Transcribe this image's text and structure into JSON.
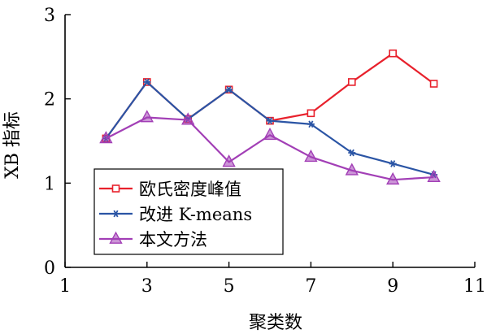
{
  "chart_data": {
    "type": "line",
    "title": "",
    "xlabel": "聚类数",
    "ylabel": "XB 指标",
    "xlim": [
      1,
      11
    ],
    "ylim": [
      0,
      3
    ],
    "x_ticks": [
      1,
      3,
      5,
      7,
      9,
      11
    ],
    "y_ticks": [
      0,
      1,
      2,
      3
    ],
    "grid": false,
    "legend_position": "bottom-left",
    "series": [
      {
        "name": "欧氏密度峰值",
        "color": "#e8212c",
        "marker": "square",
        "x": [
          2,
          3,
          4,
          5,
          6,
          7,
          8,
          9,
          10
        ],
        "y": [
          1.53,
          2.2,
          1.76,
          2.11,
          1.74,
          1.83,
          2.2,
          2.54,
          2.18
        ]
      },
      {
        "name": "改进 K-means",
        "color": "#2b55a5",
        "marker": "asterisk",
        "x": [
          2,
          3,
          4,
          5,
          6,
          7,
          8,
          9,
          10
        ],
        "y": [
          1.53,
          2.2,
          1.76,
          2.11,
          1.74,
          1.7,
          1.36,
          1.23,
          1.1
        ]
      },
      {
        "name": "本文方法",
        "color": "#a23fb6",
        "marker": "triangle",
        "x": [
          2,
          3,
          4,
          5,
          6,
          7,
          8,
          9,
          10
        ],
        "y": [
          1.53,
          1.78,
          1.75,
          1.25,
          1.57,
          1.31,
          1.15,
          1.04,
          1.07
        ]
      }
    ]
  }
}
